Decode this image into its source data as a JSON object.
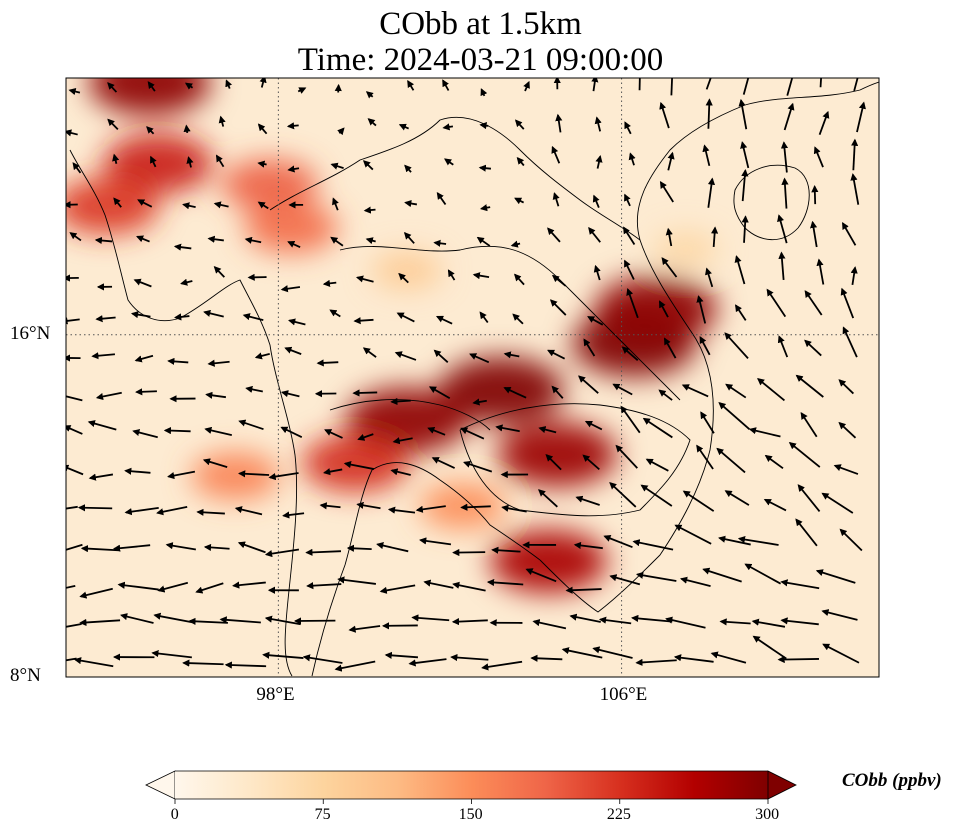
{
  "title_line1": "CObb at 1.5km",
  "title_line2": "Time: 2024-03-21 09:00:00",
  "axes": {
    "lon_ticks": [
      {
        "value": 98,
        "label": "98°E"
      },
      {
        "value": 106,
        "label": "106°E"
      }
    ],
    "lat_ticks": [
      {
        "value": 16,
        "label": "16°N"
      },
      {
        "value": 8,
        "label": "8°N"
      }
    ],
    "lon_range": [
      93.05,
      112.0
    ],
    "lat_range": [
      8.0,
      22.0
    ],
    "gridlines": "dotted"
  },
  "colorbar": {
    "label": "CObb (ppbv)",
    "ticks": [
      "0",
      "75",
      "150",
      "225",
      "300"
    ],
    "range": [
      0,
      300
    ],
    "colormap": "OrRd",
    "extend": "both",
    "colors": [
      "#fff7ec",
      "#fee8c8",
      "#fdd49e",
      "#fdbb84",
      "#fc8d59",
      "#ef6548",
      "#d7301f",
      "#b30000",
      "#7f0000"
    ]
  },
  "plumes": [
    {
      "lon": 103.2,
      "lat": 14.7,
      "value": 300
    },
    {
      "lon": 101.0,
      "lat": 14.0,
      "value": 290
    },
    {
      "lon": 106.3,
      "lat": 15.8,
      "value": 300
    },
    {
      "lon": 106.8,
      "lat": 16.6,
      "value": 290
    },
    {
      "lon": 99.8,
      "lat": 13.0,
      "value": 230
    },
    {
      "lon": 104.5,
      "lat": 13.2,
      "value": 280
    },
    {
      "lon": 104.3,
      "lat": 10.7,
      "value": 270
    },
    {
      "lon": 95.0,
      "lat": 21.9,
      "value": 290
    },
    {
      "lon": 95.2,
      "lat": 20.0,
      "value": 240
    },
    {
      "lon": 94.0,
      "lat": 19.0,
      "value": 220
    },
    {
      "lon": 97.8,
      "lat": 19.5,
      "value": 190
    },
    {
      "lon": 98.3,
      "lat": 18.5,
      "value": 180
    },
    {
      "lon": 97.0,
      "lat": 12.7,
      "value": 160
    },
    {
      "lon": 102.3,
      "lat": 12.0,
      "value": 150
    },
    {
      "lon": 101.0,
      "lat": 17.5,
      "value": 90
    },
    {
      "lon": 107.5,
      "lat": 18.0,
      "value": 70
    }
  ],
  "wind_vectors": "arrows"
}
